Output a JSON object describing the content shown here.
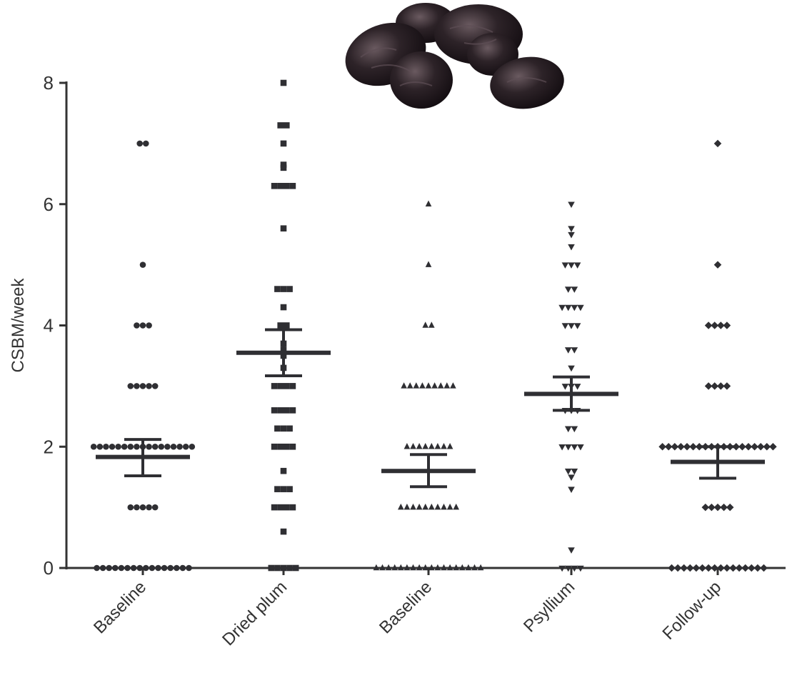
{
  "chart_data": {
    "type": "scatter",
    "ylabel": "CSBM/week",
    "ylim": [
      0,
      8
    ],
    "yticks": [
      "0",
      "2",
      "4",
      "6",
      "8"
    ],
    "categories": [
      "Baseline",
      "Dried plum",
      "Baseline",
      "Psyllium",
      "Follow-up"
    ],
    "series": [
      {
        "category": "Baseline",
        "marker": "circle",
        "mean": 1.83,
        "error_low": 1.52,
        "error_high": 2.12,
        "values": [
          7,
          7,
          5,
          4,
          4,
          4,
          3,
          3,
          3,
          3,
          3,
          2,
          2,
          2,
          2,
          2,
          2,
          2,
          2,
          2,
          2,
          2,
          2,
          2,
          2,
          2,
          2,
          2,
          1,
          1,
          1,
          1,
          1,
          0,
          0,
          0,
          0,
          0,
          0,
          0,
          0,
          0,
          0,
          0,
          0,
          0,
          0,
          0,
          0
        ]
      },
      {
        "category": "Dried plum",
        "marker": "square",
        "mean": 3.55,
        "error_low": 3.17,
        "error_high": 3.93,
        "values": [
          8,
          7.3,
          7.3,
          7,
          6.65,
          6.6,
          6.3,
          6.3,
          6.3,
          6.3,
          5.6,
          4.6,
          4.6,
          4.6,
          4.3,
          4,
          4,
          3.7,
          3.6,
          3.5,
          3.3,
          3,
          3,
          3,
          3,
          2.6,
          2.6,
          2.6,
          2.6,
          2.3,
          2.3,
          2.3,
          2,
          2,
          2,
          2,
          1.6,
          1.3,
          1.3,
          1.3,
          1,
          1,
          1,
          1,
          0.6,
          0,
          0,
          0,
          0,
          0
        ]
      },
      {
        "category": "Baseline",
        "marker": "triangle-up",
        "mean": 1.6,
        "error_low": 1.34,
        "error_high": 1.87,
        "values": [
          6,
          5,
          4,
          4,
          3,
          3,
          3,
          3,
          3,
          3,
          3,
          3,
          3,
          2,
          2,
          2,
          2,
          2,
          2,
          2,
          2,
          1,
          1,
          1,
          1,
          1,
          1,
          1,
          1,
          1,
          1,
          0,
          0,
          0,
          0,
          0,
          0,
          0,
          0,
          0,
          0,
          0,
          0,
          0,
          0,
          0,
          0,
          0,
          0
        ]
      },
      {
        "category": "Psyllium",
        "marker": "triangle-down",
        "mean": 2.87,
        "error_low": 2.6,
        "error_high": 3.15,
        "values": [
          6,
          5.6,
          5.5,
          5.3,
          5,
          5,
          5,
          4.6,
          4.6,
          4.3,
          4.3,
          4.3,
          4.3,
          4,
          4,
          4,
          3.6,
          3.6,
          3.3,
          3,
          3,
          3,
          2.6,
          2.6,
          2.6,
          2.3,
          2.3,
          2,
          2,
          2,
          2,
          1.6,
          1.6,
          1.5,
          1.3,
          0.3,
          0,
          0,
          0,
          0
        ]
      },
      {
        "category": "Follow-up",
        "marker": "diamond",
        "mean": 1.75,
        "error_low": 1.48,
        "error_high": 2.0,
        "values": [
          7,
          5,
          4,
          4,
          4,
          4,
          3,
          3,
          3,
          3,
          2,
          2,
          2,
          2,
          2,
          2,
          2,
          2,
          2,
          2,
          2,
          2,
          2,
          2,
          2,
          2,
          2,
          2,
          2,
          1,
          1,
          1,
          1,
          1,
          0,
          0,
          0,
          0,
          0,
          0,
          0,
          0,
          0,
          0,
          0,
          0,
          0,
          0,
          0,
          0
        ]
      }
    ],
    "marker_color": "#2f2f33",
    "axis_color": "#333333",
    "grid": false,
    "legend": "none",
    "decoration_icon": "dried-plums-photo"
  }
}
